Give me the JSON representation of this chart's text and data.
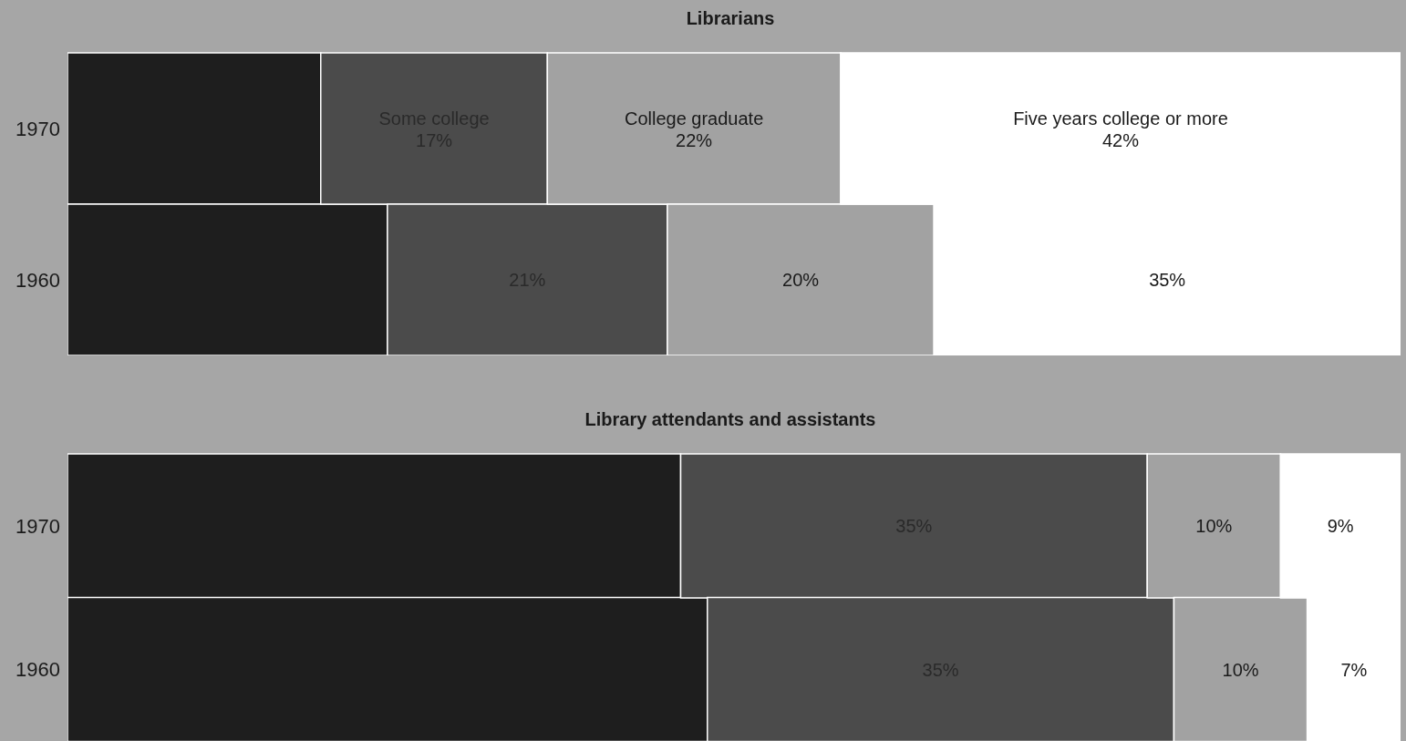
{
  "chart_data": [
    {
      "type": "bar",
      "orientation": "horizontal",
      "stacked": true,
      "title": "Librarians",
      "categories": [
        "1970",
        "1960"
      ],
      "xlim": [
        0,
        100
      ],
      "tick_labels": "y",
      "legend": false,
      "grid": false,
      "series": [
        {
          "color": "#1e1e1e",
          "values": [
            19,
            24
          ],
          "value_labels": [
            null,
            null
          ]
        },
        {
          "name": "Some college",
          "color": "#4b4b4b",
          "values": [
            17,
            21
          ],
          "value_labels": [
            "17%",
            "21%"
          ]
        },
        {
          "name": "College graduate",
          "color": "#a2a2a2",
          "values": [
            22,
            20
          ],
          "value_labels": [
            "22%",
            "20%"
          ]
        },
        {
          "name": "Five years college or more",
          "color": "#ffffff",
          "values": [
            42,
            35
          ],
          "value_labels": [
            "42%",
            "35%"
          ]
        }
      ]
    },
    {
      "type": "bar",
      "orientation": "horizontal",
      "stacked": true,
      "title": "Library attendants and assistants",
      "categories": [
        "1970",
        "1960"
      ],
      "xlim": [
        0,
        100
      ],
      "tick_labels": "y",
      "legend": false,
      "grid": false,
      "series": [
        {
          "color": "#1e1e1e",
          "values": [
            46,
            48
          ],
          "value_labels": [
            null,
            null
          ]
        },
        {
          "color": "#4b4b4b",
          "values": [
            35,
            35
          ],
          "value_labels": [
            "35%",
            "35%"
          ]
        },
        {
          "color": "#a2a2a2",
          "values": [
            10,
            10
          ],
          "value_labels": [
            "10%",
            "10%"
          ]
        },
        {
          "color": "#ffffff",
          "values": [
            9,
            7
          ],
          "value_labels": [
            "9%",
            "7%"
          ]
        }
      ]
    }
  ]
}
